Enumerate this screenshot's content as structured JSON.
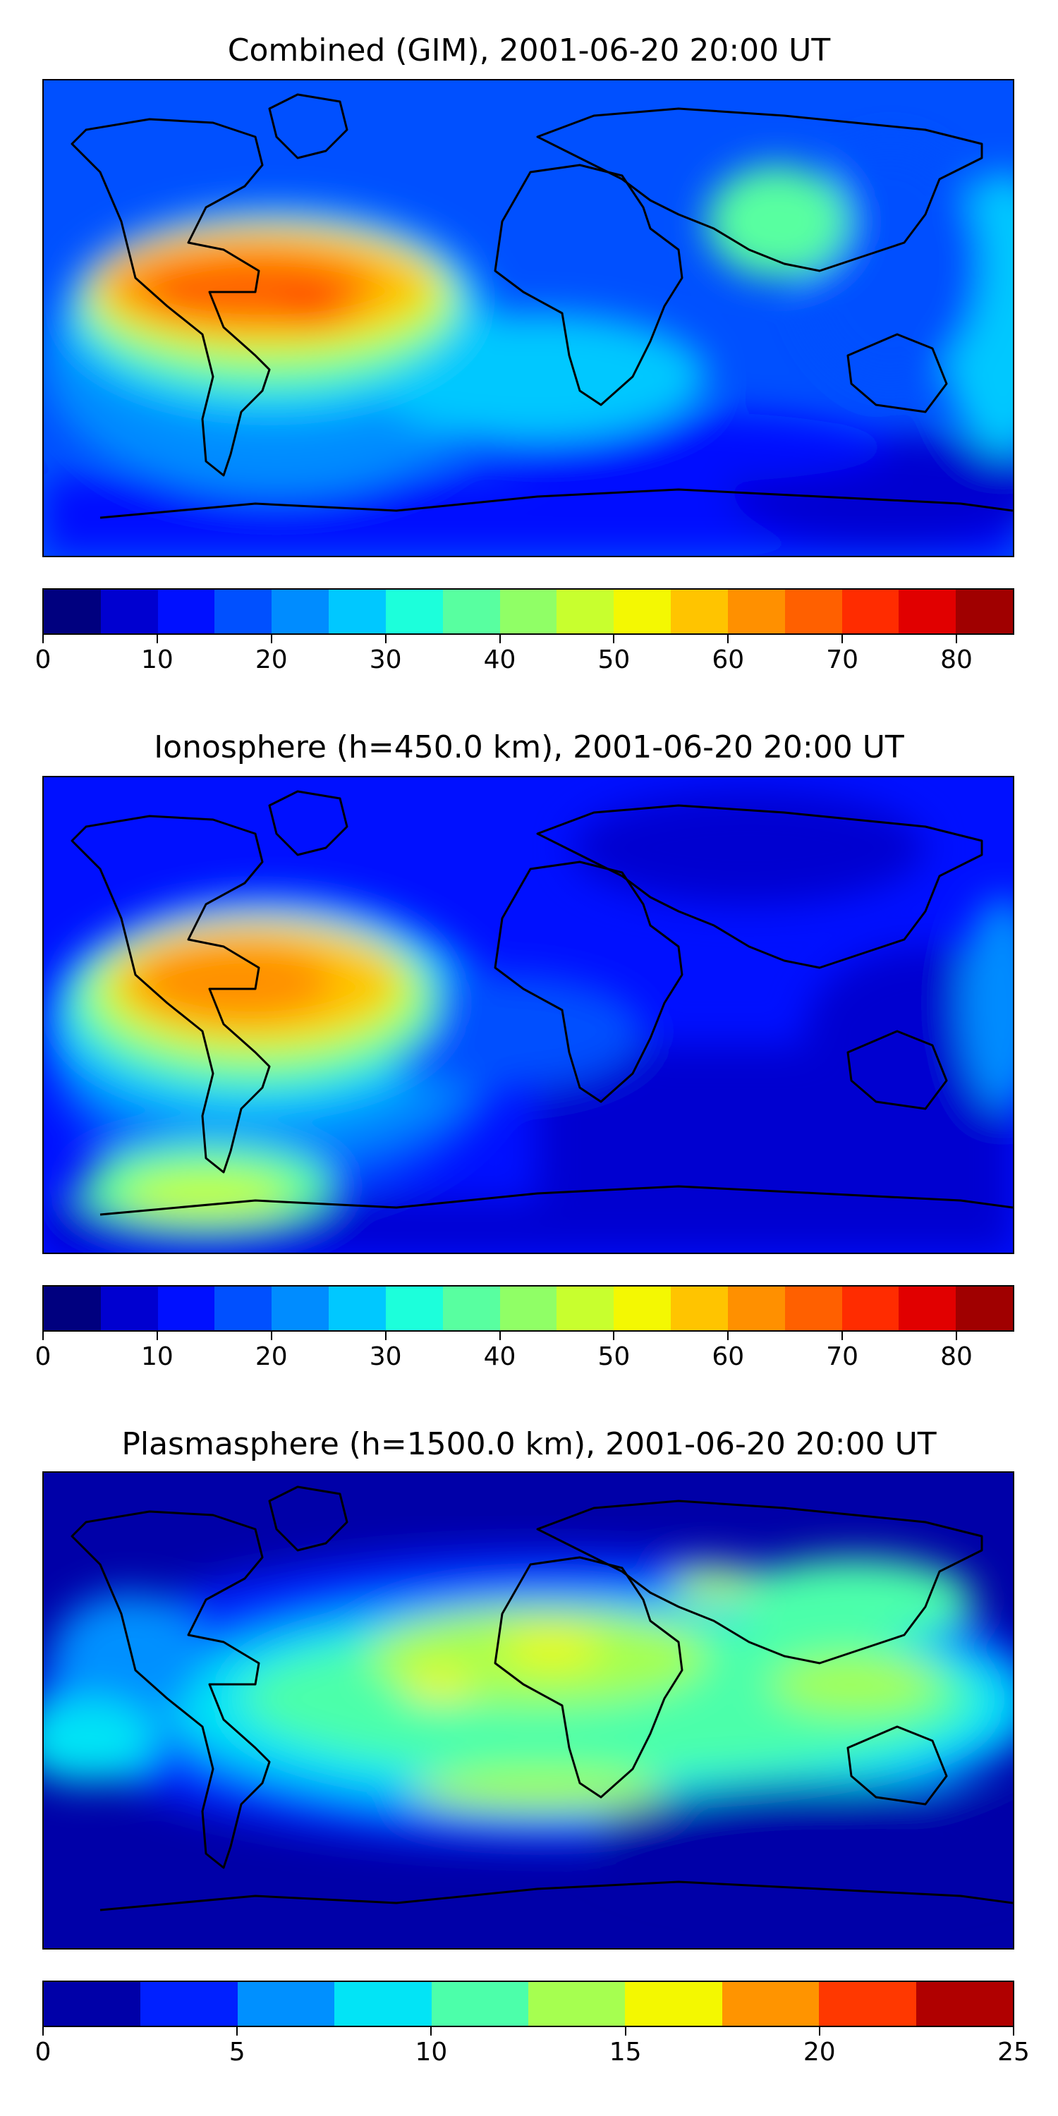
{
  "panels": [
    {
      "title": "Combined (GIM), 2001-06-20 20:00 UT",
      "colorbar": {
        "levels": [
          0,
          5,
          10,
          15,
          20,
          25,
          30,
          35,
          40,
          45,
          50,
          55,
          60,
          65,
          70,
          75,
          80,
          85
        ],
        "colors": [
          "#00007f",
          "#0000d0",
          "#0010ff",
          "#0050ff",
          "#008cff",
          "#00c8ff",
          "#1cffdb",
          "#58ffa0",
          "#90ff66",
          "#c8ff2e",
          "#f4f802",
          "#ffc400",
          "#ff9000",
          "#ff6000",
          "#ff2c00",
          "#e10000",
          "#a00000"
        ],
        "tick_values": [
          0,
          10,
          20,
          30,
          40,
          50,
          60,
          70,
          80
        ],
        "tick_labels": [
          "0",
          "10",
          "20",
          "30",
          "40",
          "50",
          "60",
          "70",
          "80"
        ]
      }
    },
    {
      "title": "Ionosphere  (h=450.0 km), 2001-06-20 20:00 UT",
      "colorbar": {
        "levels": [
          0,
          5,
          10,
          15,
          20,
          25,
          30,
          35,
          40,
          45,
          50,
          55,
          60,
          65,
          70,
          75,
          80,
          85
        ],
        "colors": [
          "#00007f",
          "#0000d0",
          "#0010ff",
          "#0050ff",
          "#008cff",
          "#00c8ff",
          "#1cffdb",
          "#58ffa0",
          "#90ff66",
          "#c8ff2e",
          "#f4f802",
          "#ffc400",
          "#ff9000",
          "#ff6000",
          "#ff2c00",
          "#e10000",
          "#a00000"
        ],
        "tick_values": [
          0,
          10,
          20,
          30,
          40,
          50,
          60,
          70,
          80
        ],
        "tick_labels": [
          "0",
          "10",
          "20",
          "30",
          "40",
          "50",
          "60",
          "70",
          "80"
        ]
      }
    },
    {
      "title": "Plasmasphere (h=1500.0 km), 2001-06-20 20:00 UT",
      "colorbar": {
        "levels": [
          0,
          2.5,
          5,
          7.5,
          10,
          12.5,
          15,
          17.5,
          20,
          22.5,
          25
        ],
        "colors": [
          "#0000a8",
          "#0020ff",
          "#0090ff",
          "#02e4f6",
          "#4cffaa",
          "#a6ff50",
          "#f4f800",
          "#ff9400",
          "#ff3800",
          "#b00000"
        ],
        "tick_values": [
          0,
          5,
          10,
          15,
          20,
          25
        ],
        "tick_labels": [
          "0",
          "5",
          "10",
          "15",
          "20",
          "25"
        ]
      }
    }
  ]
}
